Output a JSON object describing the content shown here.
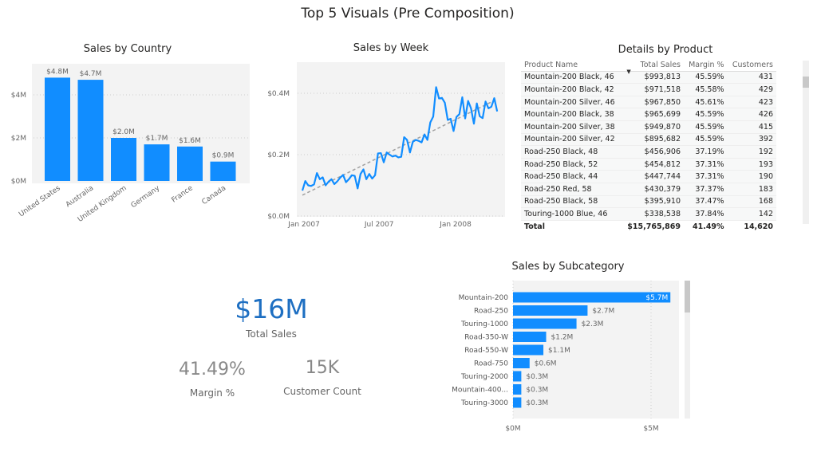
{
  "page_title": "Top 5 Visuals (Pre Composition)",
  "colors": {
    "bar": "#118DFF",
    "kpi": "#1E6FC2",
    "trend": "#A0A0A0"
  },
  "chart_data": [
    {
      "type": "bar",
      "title": "Sales by Country",
      "ylim": [
        0,
        5
      ],
      "yticks": [
        "$0M",
        "$2M",
        "$4M"
      ],
      "ytick_values": [
        0,
        2,
        4
      ],
      "grid": true,
      "categories": [
        "United States",
        "Australia",
        "United Kingdom",
        "Germany",
        "France",
        "Canada"
      ],
      "values": [
        4.8,
        4.7,
        2.0,
        1.7,
        1.6,
        0.9
      ],
      "data_labels": [
        "$4.8M",
        "$4.7M",
        "$2.0M",
        "$1.7M",
        "$1.6M",
        "$0.9M"
      ]
    },
    {
      "type": "line",
      "title": "Sales by Week",
      "ylim": [
        0,
        0.5
      ],
      "yticks": [
        "$0.0M",
        "$0.2M",
        "$0.4M"
      ],
      "ytick_values": [
        0,
        0.2,
        0.4
      ],
      "grid": true,
      "xticks": [
        "Jan 2007",
        "Jul 2007",
        "Jan 2008"
      ],
      "xtick_values": [
        "2007-01-01",
        "2007-07-01",
        "2008-01-01"
      ],
      "x": [
        "2007-01-01",
        "2007-01-08",
        "2007-01-15",
        "2007-01-22",
        "2007-01-29",
        "2007-02-05",
        "2007-02-12",
        "2007-02-19",
        "2007-02-26",
        "2007-03-05",
        "2007-03-12",
        "2007-03-19",
        "2007-03-26",
        "2007-04-02",
        "2007-04-09",
        "2007-04-16",
        "2007-04-23",
        "2007-04-30",
        "2007-05-07",
        "2007-05-14",
        "2007-05-21",
        "2007-05-28",
        "2007-06-04",
        "2007-06-11",
        "2007-06-18",
        "2007-06-25",
        "2007-07-02",
        "2007-07-09",
        "2007-07-16",
        "2007-07-23",
        "2007-07-30",
        "2007-08-06",
        "2007-08-13",
        "2007-08-20",
        "2007-08-27",
        "2007-09-03",
        "2007-09-10",
        "2007-09-17",
        "2007-09-24",
        "2007-10-01",
        "2007-10-08",
        "2007-10-15",
        "2007-10-22",
        "2007-10-29",
        "2007-11-05",
        "2007-11-12",
        "2007-11-19",
        "2007-11-26",
        "2007-12-03",
        "2007-12-10",
        "2007-12-17",
        "2007-12-24",
        "2007-12-31",
        "2008-01-07",
        "2008-01-14",
        "2008-01-21",
        "2008-01-28",
        "2008-02-04",
        "2008-02-11",
        "2008-02-18",
        "2008-02-25",
        "2008-03-03",
        "2008-03-10",
        "2008-03-17",
        "2008-03-24",
        "2008-03-31",
        "2008-04-07",
        "2008-04-14"
      ],
      "values": [
        0.083,
        0.114,
        0.1,
        0.098,
        0.103,
        0.14,
        0.12,
        0.126,
        0.1,
        0.112,
        0.12,
        0.104,
        0.113,
        0.125,
        0.134,
        0.11,
        0.12,
        0.133,
        0.131,
        0.09,
        0.137,
        0.152,
        0.12,
        0.137,
        0.122,
        0.133,
        0.204,
        0.205,
        0.175,
        0.207,
        0.2,
        0.194,
        0.197,
        0.191,
        0.193,
        0.257,
        0.248,
        0.207,
        0.242,
        0.248,
        0.245,
        0.24,
        0.266,
        0.248,
        0.305,
        0.324,
        0.42,
        0.383,
        0.385,
        0.369,
        0.313,
        0.317,
        0.277,
        0.323,
        0.332,
        0.387,
        0.318,
        0.375,
        0.351,
        0.301,
        0.367,
        0.325,
        0.319,
        0.373,
        0.351,
        0.356,
        0.384,
        0.341
      ],
      "trend": {
        "x": [
          "2007-01-01",
          "2008-04-14"
        ],
        "values": [
          0.068,
          0.381
        ]
      }
    },
    {
      "type": "bar",
      "orientation": "horizontal",
      "title": "Sales by Subcategory",
      "xlim": [
        0,
        6
      ],
      "xticks": [
        "$0M",
        "$5M"
      ],
      "xtick_values": [
        0,
        5
      ],
      "categories": [
        "Mountain-200",
        "Road-250",
        "Touring-1000",
        "Road-350-W",
        "Road-550-W",
        "Road-750",
        "Touring-2000",
        "Mountain-400...",
        "Touring-3000"
      ],
      "values": [
        5.7,
        2.7,
        2.3,
        1.2,
        1.1,
        0.6,
        0.3,
        0.3,
        0.3
      ],
      "data_labels": [
        "$5.7M",
        "$2.7M",
        "$2.3M",
        "$1.2M",
        "$1.1M",
        "$0.6M",
        "$0.3M",
        "$0.3M",
        "$0.3M"
      ]
    }
  ],
  "table": {
    "title": "Details by Product",
    "columns": [
      "Product Name",
      "Total Sales",
      "Margin %",
      "Customers"
    ],
    "rows": [
      [
        "Mountain-200 Black, 46",
        "$993,813",
        "45.59%",
        "431"
      ],
      [
        "Mountain-200 Black, 42",
        "$971,518",
        "45.58%",
        "429"
      ],
      [
        "Mountain-200 Silver, 46",
        "$967,850",
        "45.61%",
        "423"
      ],
      [
        "Mountain-200 Black, 38",
        "$965,699",
        "45.59%",
        "426"
      ],
      [
        "Mountain-200 Silver, 38",
        "$949,870",
        "45.59%",
        "415"
      ],
      [
        "Mountain-200 Silver, 42",
        "$895,682",
        "45.59%",
        "392"
      ],
      [
        "Road-250 Black, 48",
        "$456,906",
        "37.19%",
        "192"
      ],
      [
        "Road-250 Black, 52",
        "$454,812",
        "37.31%",
        "193"
      ],
      [
        "Road-250 Black, 44",
        "$447,744",
        "37.31%",
        "190"
      ],
      [
        "Road-250 Red, 58",
        "$430,379",
        "37.37%",
        "183"
      ],
      [
        "Road-250 Black, 58",
        "$395,910",
        "37.47%",
        "168"
      ],
      [
        "Touring-1000 Blue, 46",
        "$338,538",
        "37.84%",
        "142"
      ]
    ],
    "total": [
      "Total",
      "$15,765,869",
      "41.49%",
      "14,620"
    ]
  },
  "kpis": {
    "total_sales": {
      "value": "$16M",
      "label": "Total Sales"
    },
    "margin": {
      "value": "41.49%",
      "label": "Margin %"
    },
    "customers": {
      "value": "15K",
      "label": "Customer Count"
    }
  }
}
